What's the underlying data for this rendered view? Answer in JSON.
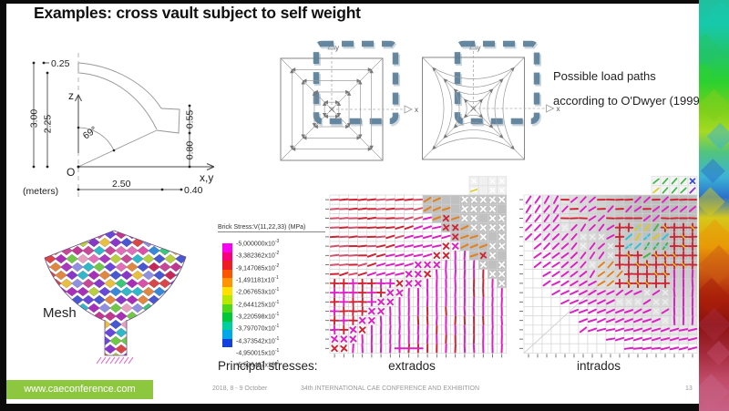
{
  "slide": {
    "title": "Examples: cross vault subject to self weight",
    "note_line1": "Possible load paths",
    "note_line2": "according to O'Dwyer (1999)",
    "mesh_label": "Mesh",
    "principal_label": "Principal stresses:",
    "extrados_label": "extrados",
    "intrados_label": "intrados"
  },
  "section": {
    "meters": "(meters)",
    "dim_top_thickness": "0.25",
    "dim_height_total": "3.00",
    "dim_height_inner": "2.25",
    "angle": "69°",
    "origin": "O",
    "axis_z": "z",
    "axis_xy": "x,y",
    "dim_right_upper": "0.55",
    "dim_right_lower": "0.80",
    "dim_bottom_span": "2.50",
    "dim_bottom_block": "0.40"
  },
  "plans": {
    "axis_x": "x",
    "axis_y": "y",
    "overlay_color": "#5b7f98"
  },
  "legend": {
    "title": "Brick Stress:V(11,22,33)  (MPa)",
    "bar_colors": [
      "#f800f0",
      "#f80078",
      "#ee1c24",
      "#fb5500",
      "#ff9400",
      "#ffe000",
      "#b8e800",
      "#50d818",
      "#00c838",
      "#00cf9e",
      "#00a8e8",
      "#1440e0"
    ],
    "entries": [
      {
        "m": "-5,000000x10",
        "e": "-3"
      },
      {
        "m": "-3,382362x10",
        "e": "-2"
      },
      {
        "m": "-9,147085x10",
        "e": "-2"
      },
      {
        "m": "-1,491181x10",
        "e": "-1"
      },
      {
        "m": "-2,067653x10",
        "e": "-1"
      },
      {
        "m": "-2,644125x10",
        "e": "-1"
      },
      {
        "m": "-3,220598x10",
        "e": "-1"
      },
      {
        "m": "-3,797070x10",
        "e": "-1"
      },
      {
        "m": "-4,373542x10",
        "e": "-1"
      },
      {
        "m": "-4,950015x10",
        "e": "-1"
      },
      {
        "m": "-5,526487x10",
        "e": "-1"
      }
    ]
  },
  "plots": {
    "grid": {
      "cols": 19,
      "rows": 17
    },
    "glyph_colors": {
      "red": "#cf2334",
      "magenta": "#de1fc4",
      "orange": "#e08020",
      "yellow": "#d9cc20",
      "green": "#3cb844",
      "cyan": "#2cc4d4",
      "blue": "#3448d0",
      "purple": "#8834c8",
      "white": "#ffffff",
      "grid": "#d2d2d2",
      "gray_fill": "#b9b9b9",
      "tick": "#555555"
    }
  },
  "footer": {
    "url": "www.caeconference.com",
    "badge_color": "#8dc63f",
    "date": "2018, 8 -  9 October",
    "conf": "34th INTERNATIONAL CAE CONFERENCE AND EXHIBITION",
    "page": "13"
  },
  "strip_colors": [
    "#17c9ab",
    "#22c46a",
    "#2bd12f",
    "#7ed01c",
    "#3cb4d4",
    "#2a70cc",
    "#d6c81a",
    "#e89a06",
    "#cc5a12",
    "#a81e0a",
    "#a42a3c",
    "#bf4a66",
    "#c86286"
  ]
}
